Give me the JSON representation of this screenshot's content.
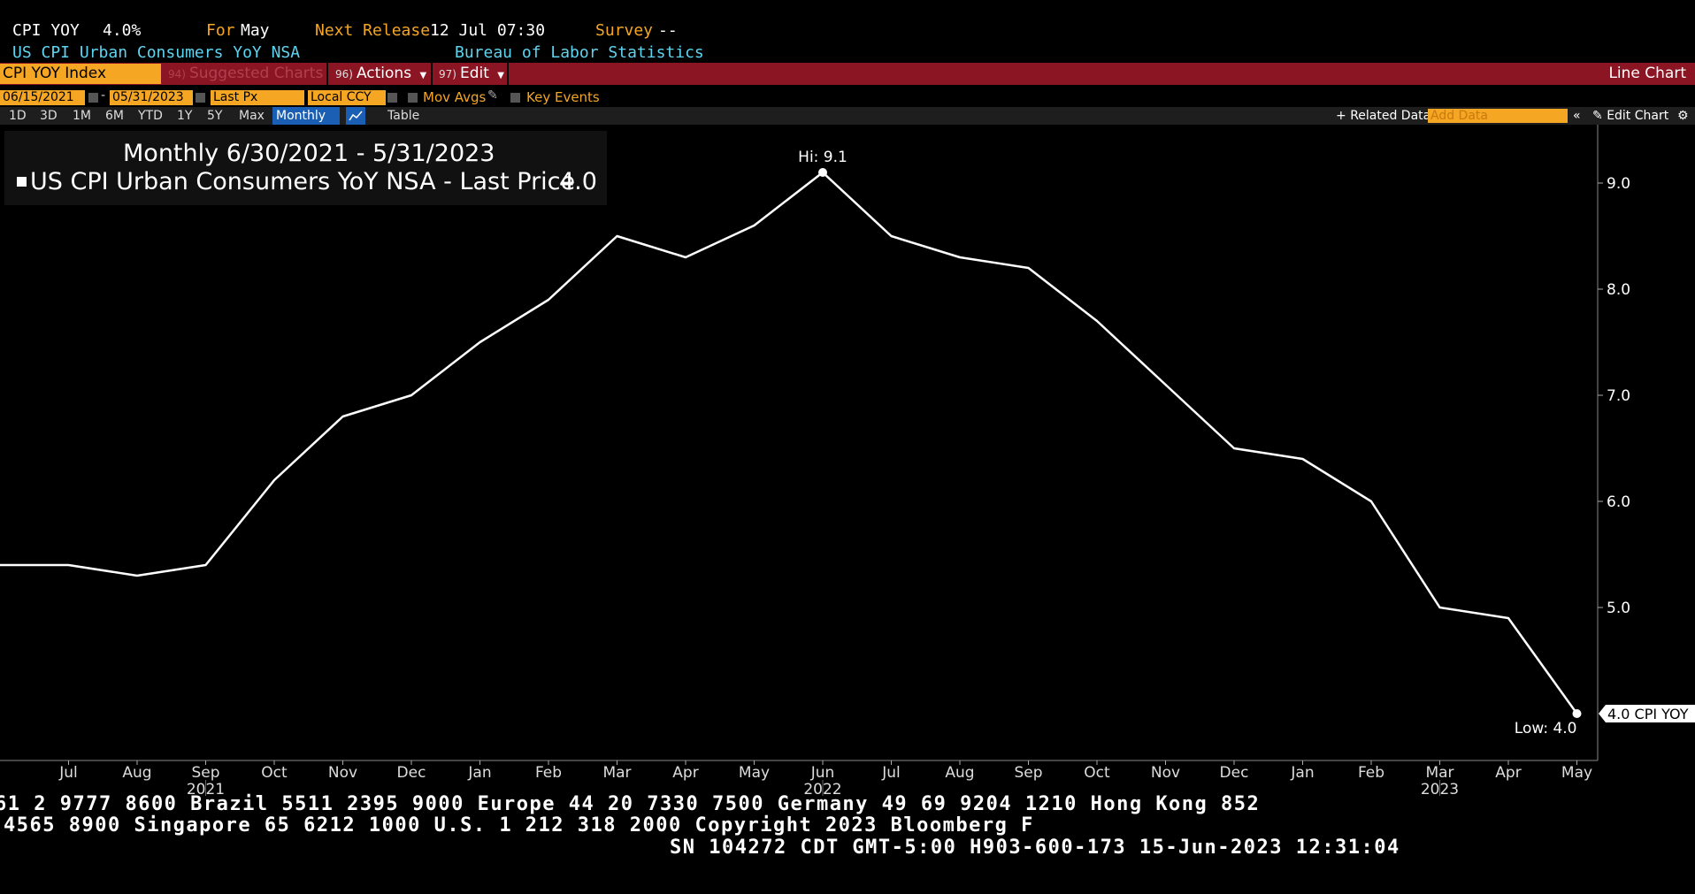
{
  "header": {
    "ticker": "CPI YOY",
    "value": "4.0%",
    "for_label": "For",
    "for_value": "May",
    "next_release_label": "Next Release",
    "next_release_value": "12 Jul 07:30",
    "survey_label": "Survey",
    "survey_value": "--",
    "description": "US CPI Urban Consumers YoY NSA",
    "source": "Bureau of Labor Statistics"
  },
  "toolbar": {
    "ticker_field": "CPI YOY Index",
    "suggested_num": "94)",
    "suggested_label": "Suggested Charts",
    "actions_num": "96)",
    "actions_label": "Actions",
    "edit_num": "97)",
    "edit_label": "Edit",
    "chart_type": "Line Chart"
  },
  "options": {
    "start_date": "06/15/2021",
    "dash": "-",
    "end_date": "05/31/2023",
    "price_field": "Last Px",
    "currency_field": "Local CCY",
    "mov_avgs": "Mov Avgs",
    "key_events": "Key Events"
  },
  "periods": {
    "items": [
      "1D",
      "3D",
      "1M",
      "6M",
      "YTD",
      "1Y",
      "5Y",
      "Max"
    ],
    "frequency": "Monthly",
    "table": "Table",
    "related_data": "Related Data",
    "add_data_placeholder": "Add Data",
    "edit_chart": "Edit Chart"
  },
  "legend": {
    "title": "Monthly 6/30/2021 - 5/31/2023",
    "series_line": "US CPI Urban Consumers YoY NSA - Last Price",
    "last_value": "4.0"
  },
  "chart_data": {
    "type": "line",
    "x": [
      "Jun 2021",
      "Jul 2021",
      "Aug 2021",
      "Sep 2021",
      "Oct 2021",
      "Nov 2021",
      "Dec 2021",
      "Jan 2022",
      "Feb 2022",
      "Mar 2022",
      "Apr 2022",
      "May 2022",
      "Jun 2022",
      "Jul 2022",
      "Aug 2022",
      "Sep 2022",
      "Oct 2022",
      "Nov 2022",
      "Dec 2022",
      "Jan 2023",
      "Feb 2023",
      "Mar 2023",
      "Apr 2023",
      "May 2023"
    ],
    "x_tick_labels": [
      "Jul",
      "Aug",
      "Sep",
      "Oct",
      "Nov",
      "Dec",
      "Jan",
      "Feb",
      "Mar",
      "Apr",
      "May",
      "Jun",
      "Jul",
      "Aug",
      "Sep",
      "Oct",
      "Nov",
      "Dec",
      "Jan",
      "Feb",
      "Mar",
      "Apr",
      "May"
    ],
    "year_labels": [
      {
        "label": "2021",
        "at": "Sep 2021"
      },
      {
        "label": "2022",
        "at": "Jun 2022"
      },
      {
        "label": "2023",
        "at": "Mar 2023"
      }
    ],
    "series": [
      {
        "name": "US CPI Urban Consumers YoY NSA",
        "values": [
          5.4,
          5.4,
          5.3,
          5.4,
          6.2,
          6.8,
          7.0,
          7.5,
          7.9,
          8.5,
          8.3,
          8.6,
          9.1,
          8.5,
          8.3,
          8.2,
          7.7,
          7.1,
          6.5,
          6.4,
          6.0,
          5.0,
          4.9,
          4.0
        ]
      }
    ],
    "ylim": [
      3.5,
      9.5
    ],
    "yticks": [
      5.0,
      6.0,
      7.0,
      8.0,
      9.0
    ],
    "ytick_labels": [
      "5.0",
      "6.0",
      "7.0",
      "8.0",
      "9.0"
    ],
    "hi_label": "Hi: 9.1",
    "low_label": "Low: 4.0",
    "last_tag": "4.0 CPI YOY",
    "line_color": "#ffffff",
    "background": "#000000"
  },
  "footer": {
    "line1": "61 2 9777 8600 Brazil 5511 2395 9000 Europe 44 20 7330 7500 Germany 49 69 9204 1210 Hong Kong 852",
    "line2": "4565 8900       Singapore 65 6212 1000       U.S. 1 212 318 2000       Copyright 2023 Bloomberg F",
    "line3": "SN 104272 CDT  GMT-5:00 H903-600-173 15-Jun-2023 12:31:04"
  }
}
